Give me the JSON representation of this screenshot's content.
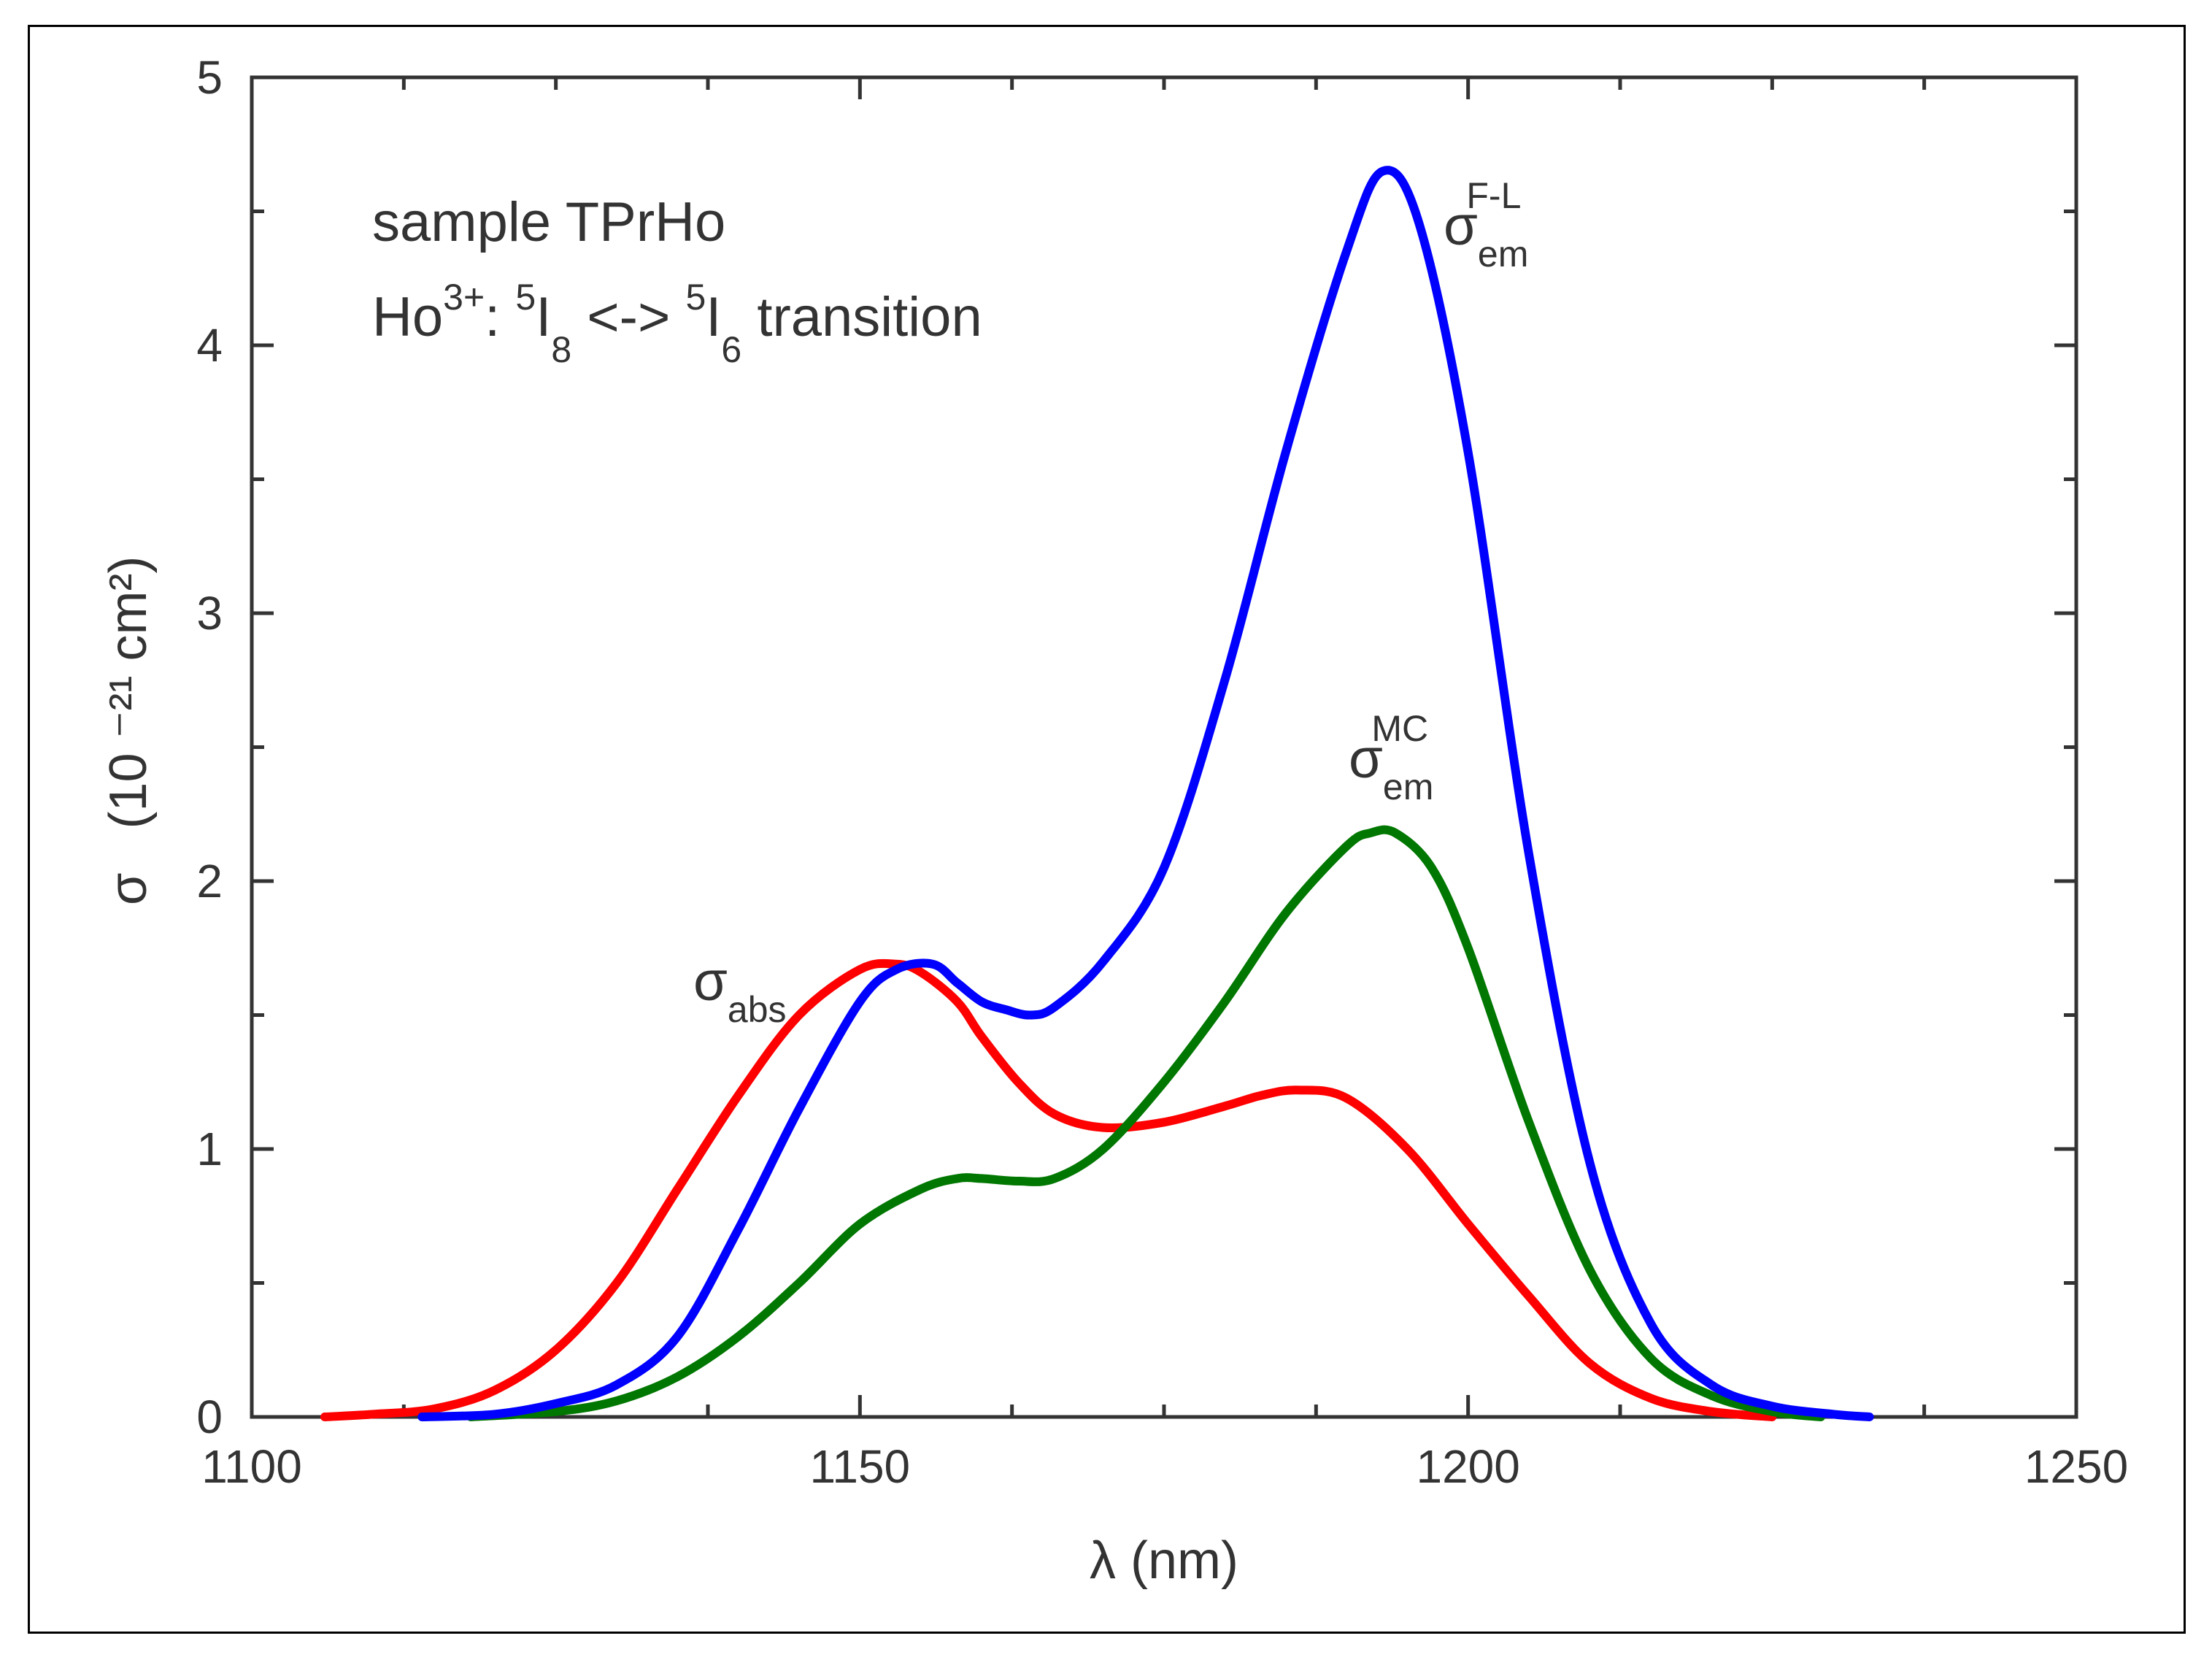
{
  "chart_data": {
    "type": "line",
    "title": "",
    "xlabel": "λ (nm)",
    "ylabel_symbol": "σ",
    "ylabel_units": "(10 ⁻²¹ cm²)",
    "xlim": [
      1100,
      1250
    ],
    "ylim": [
      0,
      5
    ],
    "xticks": [
      1100,
      1150,
      1200,
      1250
    ],
    "yticks": [
      0,
      1,
      2,
      3,
      4,
      5
    ],
    "grid": false,
    "annotations": {
      "sample": "sample TPrHo",
      "transition": {
        "ion": "Ho",
        "charge": "3+",
        "separator": ": ",
        "level1_sup": "5",
        "level1": "I",
        "level1_sub": "8",
        "arrow": " <-> ",
        "level2_sup": "5",
        "level2": "I",
        "level2_sub": "6",
        "tail": " transition"
      }
    },
    "series": [
      {
        "name": "σ_abs",
        "label_main": "σ",
        "label_sub": "abs",
        "label_sup": "",
        "color": "#ff0000",
        "x": [
          1106,
          1110,
          1115,
          1120,
          1125,
          1130,
          1135,
          1140,
          1145,
          1150,
          1153,
          1155,
          1158,
          1160,
          1163,
          1166,
          1170,
          1175,
          1180,
          1183,
          1186,
          1190,
          1195,
          1200,
          1205,
          1210,
          1215,
          1220,
          1225
        ],
        "values": [
          0.0,
          0.01,
          0.03,
          0.1,
          0.25,
          0.5,
          0.85,
          1.2,
          1.5,
          1.67,
          1.69,
          1.66,
          1.55,
          1.42,
          1.25,
          1.13,
          1.08,
          1.1,
          1.16,
          1.2,
          1.22,
          1.19,
          1.0,
          0.72,
          0.45,
          0.2,
          0.07,
          0.02,
          0.0
        ]
      },
      {
        "name": "σ_em^F-L",
        "label_main": "σ",
        "label_sub": "em",
        "label_sup": "F-L",
        "color": "#0000ff",
        "x": [
          1114,
          1120,
          1125,
          1130,
          1135,
          1140,
          1145,
          1150,
          1153,
          1156,
          1158,
          1160,
          1162,
          1164,
          1166,
          1170,
          1175,
          1180,
          1185,
          1190,
          1193,
          1196,
          1200,
          1205,
          1210,
          1215,
          1220,
          1225,
          1230,
          1233
        ],
        "values": [
          0.0,
          0.01,
          0.05,
          0.12,
          0.3,
          0.7,
          1.15,
          1.55,
          1.67,
          1.69,
          1.62,
          1.55,
          1.52,
          1.5,
          1.53,
          1.7,
          2.05,
          2.75,
          3.6,
          4.35,
          4.65,
          4.45,
          3.6,
          2.1,
          0.95,
          0.35,
          0.12,
          0.04,
          0.01,
          0.0
        ]
      },
      {
        "name": "σ_em^MC",
        "label_main": "σ",
        "label_sub": "em",
        "label_sup": "MC",
        "color": "#007700",
        "x": [
          1118,
          1125,
          1130,
          1135,
          1140,
          1145,
          1150,
          1155,
          1158,
          1160,
          1163,
          1166,
          1170,
          1175,
          1180,
          1185,
          1190,
          1192,
          1194,
          1197,
          1200,
          1205,
          1210,
          1215,
          1220,
          1225,
          1229
        ],
        "values": [
          0.0,
          0.02,
          0.06,
          0.15,
          0.3,
          0.5,
          0.72,
          0.85,
          0.89,
          0.89,
          0.88,
          0.89,
          1.0,
          1.25,
          1.55,
          1.88,
          2.13,
          2.18,
          2.18,
          2.05,
          1.75,
          1.1,
          0.55,
          0.22,
          0.08,
          0.02,
          0.0
        ]
      }
    ]
  }
}
